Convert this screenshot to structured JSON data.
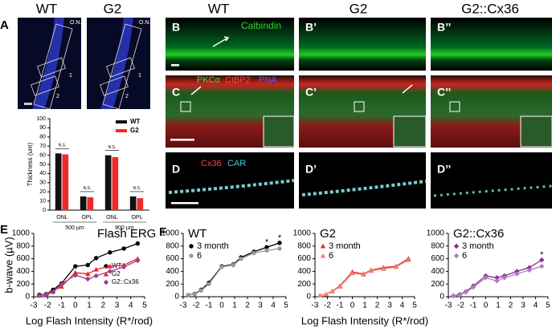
{
  "images": {
    "A": {
      "letter": "A",
      "titles": [
        "WT",
        "G2"
      ],
      "on": [
        "O.N.",
        "O.N."
      ],
      "regions": [
        "1",
        "2",
        "1",
        "2"
      ]
    },
    "columns": [
      "WT",
      "G2",
      "G2::Cx36"
    ],
    "B": {
      "letters": [
        "B",
        "B’",
        "B’’"
      ],
      "stain": "Calbindin"
    },
    "C": {
      "letters": [
        "C",
        "C’",
        "C’’"
      ],
      "stains": [
        "PKCα",
        "CtBP2",
        "PNA"
      ]
    },
    "D": {
      "letters": [
        "D",
        "D’",
        "D’’"
      ],
      "stains": [
        "Cx36",
        "CAR"
      ]
    }
  },
  "figure_letters": [
    "E",
    "F"
  ],
  "chart_data": [
    {
      "type": "bar",
      "ylabel": "Thickness (um)",
      "categories": [
        "ONL",
        "OPL",
        "ONL",
        "OPL"
      ],
      "groups": [
        "500 µm",
        "800 µm"
      ],
      "series": [
        {
          "name": "WT",
          "color": "#111111",
          "values": [
            62,
            15,
            60,
            15
          ]
        },
        {
          "name": "G2",
          "color": "#ee2a2a",
          "values": [
            61,
            14,
            58,
            13
          ]
        }
      ],
      "annotations": [
        "N.S.",
        "N.S.",
        "N.S.",
        "N.S."
      ],
      "ylim": [
        0,
        100
      ],
      "yticks": [
        0,
        10,
        20,
        30,
        40,
        50,
        60,
        70,
        80,
        90,
        100
      ],
      "legend": "upper right"
    },
    {
      "type": "line",
      "title": "Flash ERG",
      "ylabel": "b-wave (µV)",
      "xlabel": "Log Flash Intensity (R*/rod)",
      "x": [
        -2.6,
        -2.1,
        -1.6,
        -1.0,
        0.0,
        0.9,
        1.5,
        2.5,
        3.5,
        4.5
      ],
      "series": [
        {
          "name": "WT",
          "color": "#000000",
          "marker": "circle",
          "values": [
            30,
            40,
            110,
            210,
            480,
            500,
            610,
            700,
            760,
            840
          ]
        },
        {
          "name": "G2",
          "color": "#e8262b",
          "marker": "triangle",
          "values": [
            20,
            45,
            90,
            160,
            380,
            360,
            430,
            480,
            500,
            600
          ]
        },
        {
          "name": "G2::Cx36",
          "color": "#9b3d9b",
          "marker": "diamond",
          "values": [
            20,
            30,
            70,
            200,
            340,
            280,
            330,
            400,
            470,
            570
          ]
        }
      ],
      "xlim": [
        -3,
        5
      ],
      "xticks": [
        -3,
        -2,
        -1,
        0,
        1,
        2,
        3,
        4,
        5
      ],
      "ylim": [
        0,
        1000
      ],
      "yticks": [
        0,
        200,
        400,
        600,
        800,
        1000
      ],
      "legend": "lower right",
      "annotations": []
    },
    {
      "type": "line",
      "title": "WT",
      "x": [
        -2.6,
        -2.1,
        -1.6,
        -1.0,
        0.0,
        0.9,
        1.5,
        2.5,
        3.5,
        4.5
      ],
      "series": [
        {
          "name": "3 month",
          "color": "#000000",
          "marker": "circle",
          "values": [
            25,
            45,
            110,
            220,
            480,
            510,
            620,
            710,
            780,
            850
          ]
        },
        {
          "name": "6",
          "color": "#9a9a9a",
          "marker": "circle",
          "values": [
            25,
            40,
            100,
            200,
            470,
            500,
            600,
            690,
            730,
            760
          ]
        }
      ],
      "xlim": [
        -3,
        5
      ],
      "xticks": [
        -3,
        -2,
        -1,
        0,
        1,
        2,
        3,
        4,
        5
      ],
      "ylim": [
        0,
        1000
      ],
      "yticks": [
        0,
        200,
        400,
        600,
        800,
        1000
      ],
      "legend": "upper left",
      "annotations": [
        {
          "text": "*",
          "x": 3.5
        },
        {
          "text": "*",
          "x": 4.5
        }
      ]
    },
    {
      "type": "line",
      "title": "G2",
      "xlabel": "Log Flash Intensity (R*/rod)",
      "x": [
        -2.6,
        -2.1,
        -1.6,
        -1.0,
        0.0,
        0.9,
        1.5,
        2.5,
        3.5,
        4.5
      ],
      "series": [
        {
          "name": "3 month",
          "color": "#e8262b",
          "marker": "triangle",
          "values": [
            20,
            40,
            90,
            170,
            390,
            360,
            420,
            460,
            480,
            600
          ]
        },
        {
          "name": "6",
          "color": "#f08070",
          "marker": "triangle",
          "values": [
            20,
            40,
            85,
            160,
            370,
            350,
            410,
            440,
            470,
            580
          ]
        }
      ],
      "xlim": [
        -3,
        5
      ],
      "xticks": [
        -3,
        -2,
        -1,
        0,
        1,
        2,
        3,
        4,
        5
      ],
      "ylim": [
        0,
        1000
      ],
      "yticks": [
        0,
        200,
        400,
        600,
        800,
        1000
      ],
      "legend": "upper left",
      "annotations": []
    },
    {
      "type": "line",
      "title": "G2::Cx36",
      "x": [
        -2.6,
        -2.1,
        -1.6,
        -1.0,
        0.0,
        0.9,
        1.5,
        2.5,
        3.5,
        4.5
      ],
      "series": [
        {
          "name": "3 month",
          "color": "#8e2d8e",
          "marker": "diamond",
          "values": [
            15,
            35,
            80,
            170,
            330,
            300,
            330,
            400,
            460,
            580
          ]
        },
        {
          "name": "6",
          "color": "#a97fc7",
          "marker": "diamond",
          "values": [
            10,
            25,
            70,
            150,
            300,
            250,
            300,
            360,
            420,
            480
          ]
        }
      ],
      "xlim": [
        -3,
        5
      ],
      "xticks": [
        -3,
        -2,
        -1,
        0,
        1,
        2,
        3,
        4,
        5
      ],
      "ylim": [
        0,
        1000
      ],
      "yticks": [
        0,
        200,
        400,
        600,
        800,
        1000
      ],
      "legend": "upper left",
      "annotations": [
        {
          "text": "*",
          "x": 4.5
        }
      ]
    }
  ]
}
